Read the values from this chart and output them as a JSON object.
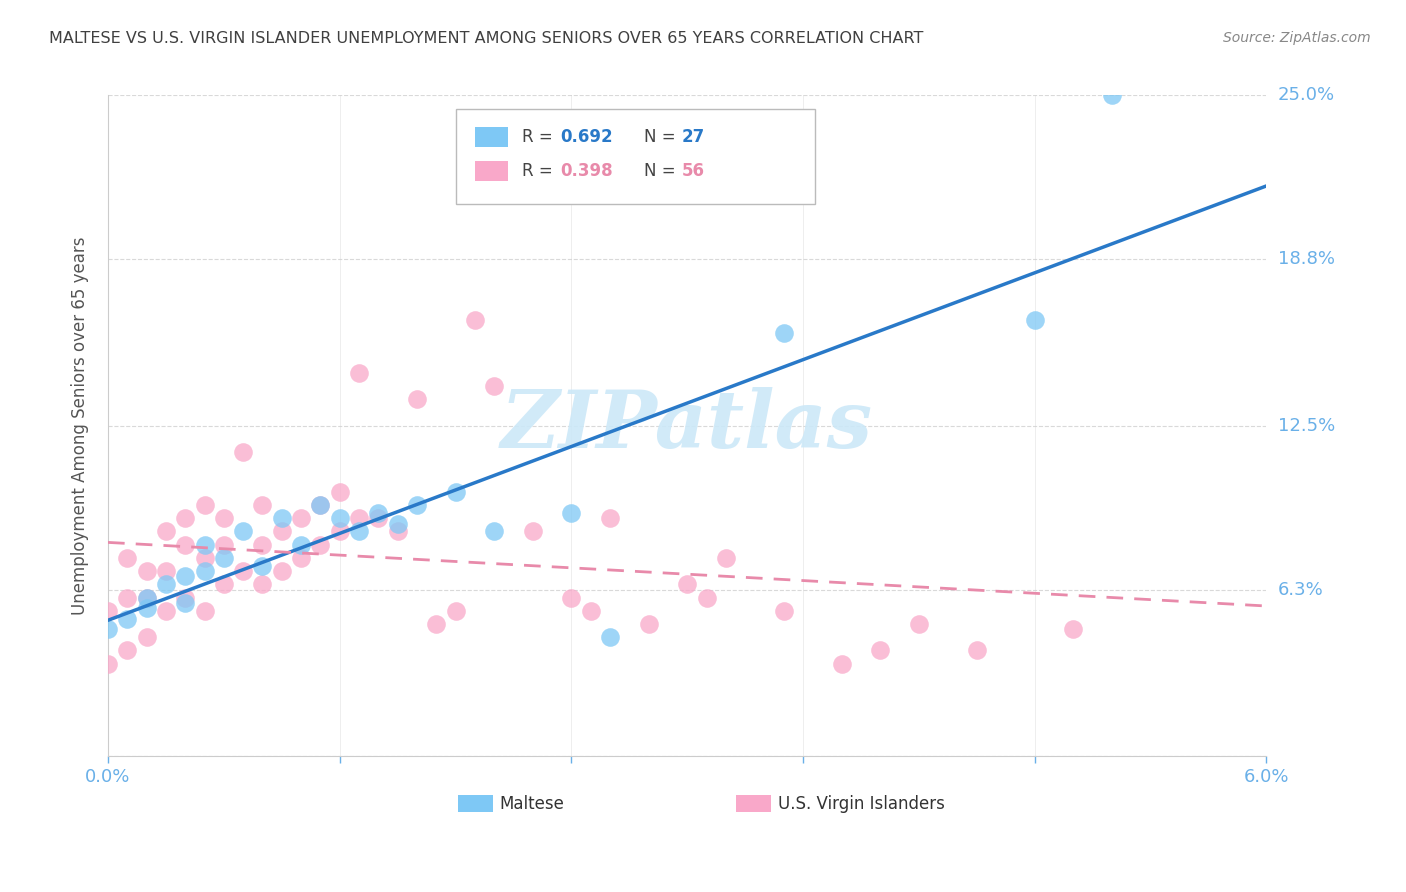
{
  "title": "MALTESE VS U.S. VIRGIN ISLANDER UNEMPLOYMENT AMONG SENIORS OVER 65 YEARS CORRELATION CHART",
  "source": "Source: ZipAtlas.com",
  "ylabel": "Unemployment Among Seniors over 65 years",
  "xlim": [
    0.0,
    0.06
  ],
  "ylim": [
    0.0,
    0.25
  ],
  "ytick_labels": [
    "",
    "6.3%",
    "12.5%",
    "18.8%",
    "25.0%"
  ],
  "ytick_vals": [
    0.0,
    0.063,
    0.125,
    0.188,
    0.25
  ],
  "xtick_vals": [
    0.0,
    0.012,
    0.024,
    0.036,
    0.048,
    0.06
  ],
  "xtick_labels": [
    "0.0%",
    "",
    "",
    "",
    "",
    "6.0%"
  ],
  "maltese_color": "#7ec8f5",
  "virgin_islander_color": "#f9a8c9",
  "maltese_line_color": "#2979c8",
  "virgin_islander_line_color": "#e88aaa",
  "axis_label_color": "#6ab0e8",
  "title_color": "#404040",
  "watermark_color": "#cce8f8",
  "maltese_x": [
    0.0,
    0.001,
    0.002,
    0.002,
    0.003,
    0.004,
    0.004,
    0.005,
    0.005,
    0.006,
    0.007,
    0.008,
    0.009,
    0.01,
    0.011,
    0.012,
    0.013,
    0.014,
    0.015,
    0.016,
    0.018,
    0.02,
    0.024,
    0.026,
    0.035,
    0.048,
    0.052
  ],
  "maltese_y": [
    0.048,
    0.052,
    0.056,
    0.06,
    0.065,
    0.058,
    0.068,
    0.07,
    0.08,
    0.075,
    0.085,
    0.072,
    0.09,
    0.08,
    0.095,
    0.09,
    0.085,
    0.092,
    0.088,
    0.095,
    0.1,
    0.085,
    0.092,
    0.045,
    0.16,
    0.165,
    0.25
  ],
  "vi_x": [
    0.0,
    0.0,
    0.001,
    0.001,
    0.001,
    0.002,
    0.002,
    0.002,
    0.003,
    0.003,
    0.003,
    0.004,
    0.004,
    0.004,
    0.005,
    0.005,
    0.005,
    0.006,
    0.006,
    0.006,
    0.007,
    0.007,
    0.008,
    0.008,
    0.008,
    0.009,
    0.009,
    0.01,
    0.01,
    0.011,
    0.011,
    0.012,
    0.012,
    0.013,
    0.013,
    0.014,
    0.015,
    0.016,
    0.017,
    0.018,
    0.019,
    0.02,
    0.022,
    0.024,
    0.025,
    0.026,
    0.028,
    0.03,
    0.031,
    0.032,
    0.035,
    0.038,
    0.04,
    0.042,
    0.045,
    0.05
  ],
  "vi_y": [
    0.035,
    0.055,
    0.04,
    0.06,
    0.075,
    0.045,
    0.06,
    0.07,
    0.055,
    0.07,
    0.085,
    0.06,
    0.08,
    0.09,
    0.055,
    0.075,
    0.095,
    0.065,
    0.08,
    0.09,
    0.07,
    0.115,
    0.065,
    0.08,
    0.095,
    0.07,
    0.085,
    0.075,
    0.09,
    0.08,
    0.095,
    0.085,
    0.1,
    0.09,
    0.145,
    0.09,
    0.085,
    0.135,
    0.05,
    0.055,
    0.165,
    0.14,
    0.085,
    0.06,
    0.055,
    0.09,
    0.05,
    0.065,
    0.06,
    0.075,
    0.055,
    0.035,
    0.04,
    0.05,
    0.04,
    0.048
  ],
  "maltese_line_x0": 0.0,
  "maltese_line_x1": 0.06,
  "vi_line_x0": 0.0,
  "vi_line_x1": 0.06
}
